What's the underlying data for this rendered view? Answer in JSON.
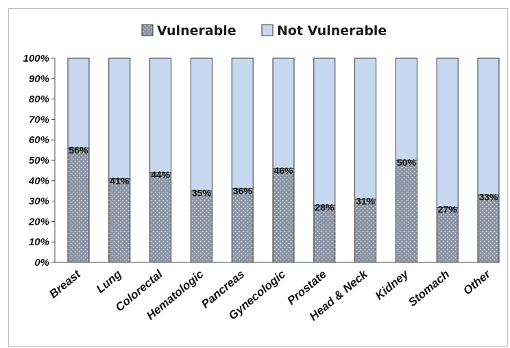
{
  "chart_data": {
    "type": "bar",
    "stacked": true,
    "percent": true,
    "categories": [
      "Breast",
      "Lung",
      "Colorectal",
      "Hematologic",
      "Pancreas",
      "Gynecologic",
      "Prostate",
      "Head & Neck",
      "Kidney",
      "Stomach",
      "Other"
    ],
    "series": [
      {
        "name": "Vulnerable",
        "values": [
          56,
          41,
          44,
          35,
          36,
          46,
          28,
          31,
          50,
          27,
          33
        ],
        "color": "#8a93a3",
        "pattern": "dotted"
      },
      {
        "name": "Not Vulnerable",
        "values": [
          44,
          59,
          56,
          65,
          64,
          54,
          72,
          69,
          50,
          73,
          67
        ],
        "color": "#c6d9f0"
      }
    ],
    "data_labels": [
      "56%",
      "41%",
      "44%",
      "35%",
      "36%",
      "46%",
      "28%",
      "31%",
      "50%",
      "27%",
      "33%"
    ],
    "yticks": [
      "0%",
      "10%",
      "20%",
      "30%",
      "40%",
      "50%",
      "60%",
      "70%",
      "80%",
      "90%",
      "100%"
    ],
    "ylim": [
      0,
      100
    ],
    "title": "",
    "xlabel": "",
    "ylabel": "",
    "legend_position": "top",
    "grid": false
  }
}
